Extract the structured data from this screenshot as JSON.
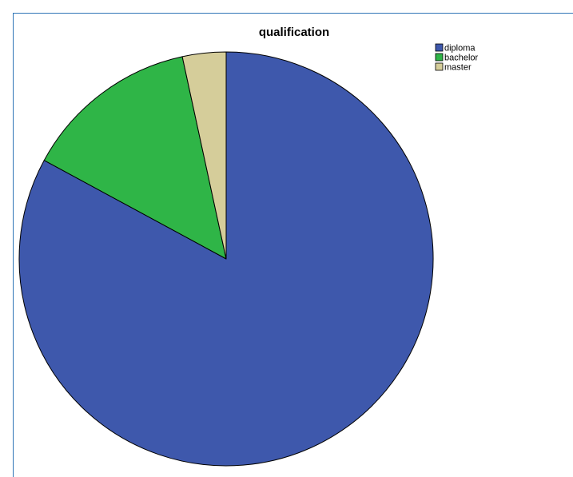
{
  "chart_data": {
    "type": "pie",
    "title": "qualification",
    "categories": [
      "diploma",
      "bachelor",
      "master"
    ],
    "values": [
      82.9,
      13.7,
      3.4
    ],
    "colors": [
      "#3e58ac",
      "#2fb547",
      "#d5cd9a"
    ],
    "legend": "top-right",
    "start_angle_deg": 0,
    "direction": "clockwise"
  }
}
